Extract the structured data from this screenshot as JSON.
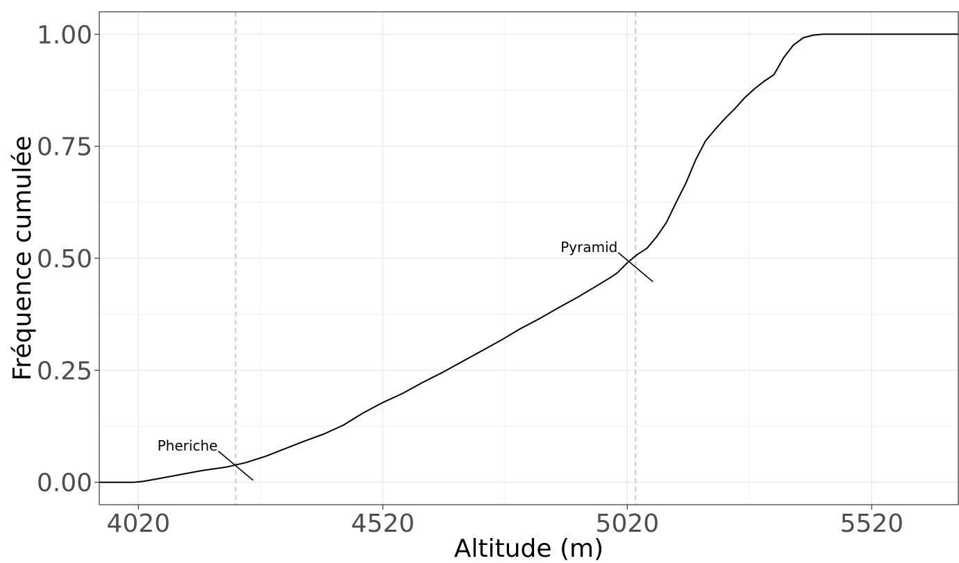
{
  "chart_data": {
    "type": "line",
    "title": "",
    "xlabel": "Altitude (m)",
    "ylabel": "Fréquence cumulée",
    "xlim": [
      3940,
      5697
    ],
    "ylim": [
      -0.05,
      1.05
    ],
    "x_ticks": [
      4020,
      4520,
      5020,
      5520
    ],
    "x_tick_labels": [
      "4020",
      "4520",
      "5020",
      "5520"
    ],
    "y_ticks": [
      0.0,
      0.25,
      0.5,
      0.75,
      1.0
    ],
    "y_tick_labels": [
      "0.00",
      "0.25",
      "0.50",
      "0.75",
      "1.00"
    ],
    "grid": true,
    "legend": "none",
    "series": [
      {
        "color": "#000000",
        "x": [
          3940,
          4010,
          4030,
          4060,
          4100,
          4150,
          4200,
          4240,
          4280,
          4320,
          4360,
          4400,
          4440,
          4480,
          4520,
          4560,
          4600,
          4640,
          4680,
          4720,
          4760,
          4800,
          4840,
          4880,
          4920,
          4960,
          4990,
          5000,
          5020,
          5040,
          5060,
          5080,
          5100,
          5120,
          5140,
          5160,
          5180,
          5200,
          5220,
          5240,
          5260,
          5280,
          5300,
          5320,
          5340,
          5360,
          5380,
          5400,
          5420,
          5425,
          5440,
          5460,
          5480,
          5500,
          5520,
          5580,
          5697
        ],
        "y": [
          0.0,
          0.0,
          0.002,
          0.008,
          0.016,
          0.026,
          0.034,
          0.044,
          0.058,
          0.075,
          0.092,
          0.108,
          0.128,
          0.155,
          0.178,
          0.198,
          0.222,
          0.244,
          0.268,
          0.292,
          0.316,
          0.342,
          0.365,
          0.39,
          0.414,
          0.44,
          0.46,
          0.468,
          0.49,
          0.508,
          0.522,
          0.548,
          0.58,
          0.625,
          0.668,
          0.72,
          0.762,
          0.788,
          0.812,
          0.834,
          0.858,
          0.878,
          0.895,
          0.91,
          0.948,
          0.976,
          0.992,
          0.998,
          1.0,
          1.0,
          1.0,
          1.0,
          1.0,
          1.0,
          1.0,
          1.0,
          1.0
        ]
      }
    ],
    "vlines": [
      {
        "x": 4219,
        "style": "dashed",
        "color": "#bdbdbd"
      },
      {
        "x": 5037,
        "style": "dashed",
        "color": "#bdbdbd"
      }
    ],
    "annotations": [
      {
        "text": "Pheriche",
        "x": 4219,
        "y": 0.037
      },
      {
        "text": "Pyramid",
        "x": 5037,
        "y": 0.48
      }
    ]
  }
}
